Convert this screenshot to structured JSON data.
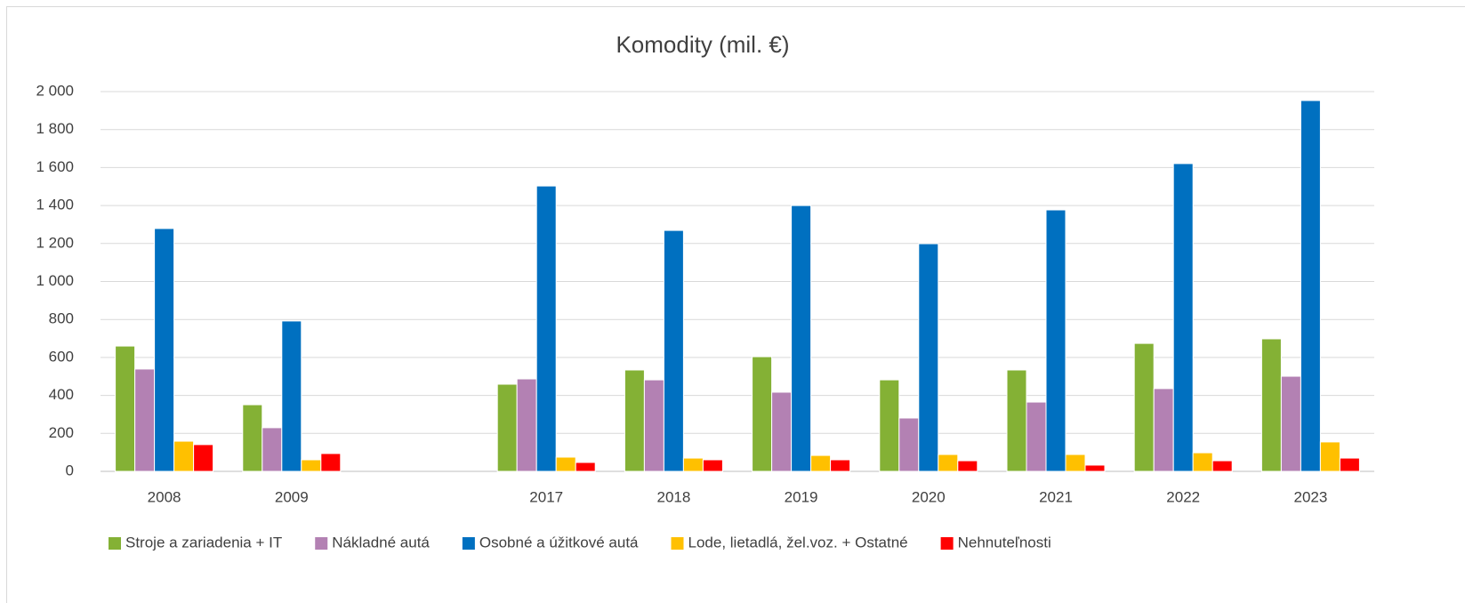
{
  "chart_data": {
    "type": "bar",
    "title": "Komodity (mil. €)",
    "categories": [
      "2008",
      "2009",
      null,
      "2017",
      "2018",
      "2019",
      "2020",
      "2021",
      "2022",
      "2023"
    ],
    "series": [
      {
        "name": "Stroje a zariadenia + IT",
        "color": "#84b135",
        "values": [
          660,
          351,
          null,
          459,
          534,
          604,
          482,
          534,
          674,
          698
        ]
      },
      {
        "name": "Nákladné autá",
        "color": "#b381b3",
        "values": [
          539,
          230,
          null,
          487,
          482,
          417,
          281,
          365,
          436,
          501
        ]
      },
      {
        "name": "Osobné a úžitkové autá",
        "color": "#0070c0",
        "values": [
          1279,
          792,
          null,
          1503,
          1269,
          1400,
          1199,
          1377,
          1621,
          1953
        ]
      },
      {
        "name": "Lode, lietadlá, žel.voz. + Ostatné",
        "color": "#ffc000",
        "values": [
          159,
          61,
          null,
          75,
          70,
          84,
          89,
          89,
          98,
          155
        ]
      },
      {
        "name": "Nehnuteľnosti",
        "color": "#ff0000",
        "values": [
          141,
          94,
          null,
          47,
          61,
          61,
          56,
          33,
          56,
          70
        ]
      }
    ],
    "ylim": [
      0,
      2000
    ],
    "yticks": [
      0,
      {
        "value": 200,
        "label": "200"
      },
      {
        "value": 400,
        "label": "400"
      },
      {
        "value": 600,
        "label": "600"
      },
      {
        "value": 800,
        "label": "800"
      },
      {
        "value": 1000,
        "label": "1 000"
      },
      {
        "value": 1200,
        "label": "1 200"
      },
      {
        "value": 1400,
        "label": "1 400"
      },
      {
        "value": 1600,
        "label": "1 600"
      },
      {
        "value": 1800,
        "label": "1 800"
      },
      {
        "value": 2000,
        "label": "2 000"
      }
    ],
    "grid": true,
    "legend": "bottom"
  }
}
